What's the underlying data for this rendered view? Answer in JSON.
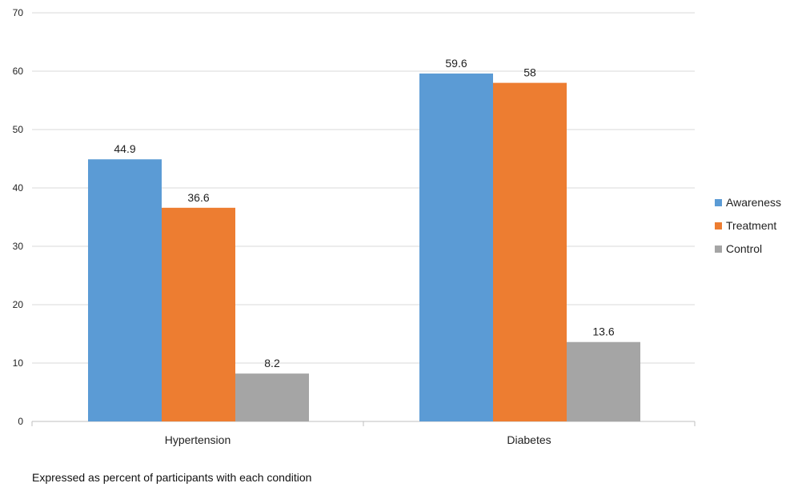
{
  "chart_data": {
    "type": "bar",
    "categories": [
      "Hypertension",
      "Diabetes"
    ],
    "series": [
      {
        "name": "Awareness",
        "values": [
          44.9,
          59.6
        ],
        "color": "#5b9bd5"
      },
      {
        "name": "Treatment",
        "values": [
          36.6,
          58
        ],
        "color": "#ed7d31"
      },
      {
        "name": "Control",
        "values": [
          8.2,
          13.6
        ],
        "color": "#a5a5a5"
      }
    ],
    "data_labels": [
      [
        "44.9",
        "59.6"
      ],
      [
        "36.6",
        "58"
      ],
      [
        "8.2",
        "13.6"
      ]
    ],
    "yticks": [
      "0",
      "10",
      "20",
      "30",
      "40",
      "50",
      "60",
      "70"
    ],
    "ylim": [
      0,
      70
    ],
    "grid": true,
    "legend_position": "right",
    "title": "",
    "xlabel": "",
    "ylabel": ""
  },
  "note": "Expressed as percent of participants with each condition"
}
